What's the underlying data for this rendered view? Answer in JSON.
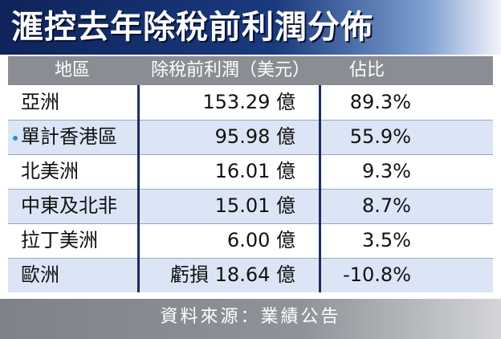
{
  "title": "滙控去年除稅前利潤分佈",
  "source": "資料來源：業績公告",
  "chart_data": {
    "type": "table",
    "title": "滙控去年除稅前利潤分佈",
    "columns": [
      "地區",
      "除稅前利潤（美元）",
      "佔比"
    ],
    "rows": [
      {
        "region": "亞洲",
        "profit": "153.29 億",
        "share": "89.3%",
        "highlight": false
      },
      {
        "region": "單計香港區",
        "profit": "95.98 億",
        "share": "55.9%",
        "highlight": true
      },
      {
        "region": "北美洲",
        "profit": "16.01 億",
        "share": "9.3%",
        "highlight": false
      },
      {
        "region": "中東及北非",
        "profit": "15.01 億",
        "share": "8.7%",
        "highlight": false
      },
      {
        "region": "拉丁美洲",
        "profit": "6.00 億",
        "share": "3.5%",
        "highlight": false
      },
      {
        "region": "歐洲",
        "profit": "虧損 18.64 億",
        "share": "-10.8%",
        "highlight": false
      }
    ],
    "values_usd_100m": [
      153.29,
      95.98,
      16.01,
      15.01,
      6.0,
      -18.64
    ],
    "shares_percent": [
      89.3,
      55.9,
      9.3,
      8.7,
      3.5,
      -10.8
    ]
  },
  "colors": {
    "title_bg": "#1a3a7e",
    "header_bg": "#8a8d93",
    "alt_row_bg": "#dbe5f5",
    "divider": "#1a2d6a",
    "bullet": "#2a8fd6"
  }
}
